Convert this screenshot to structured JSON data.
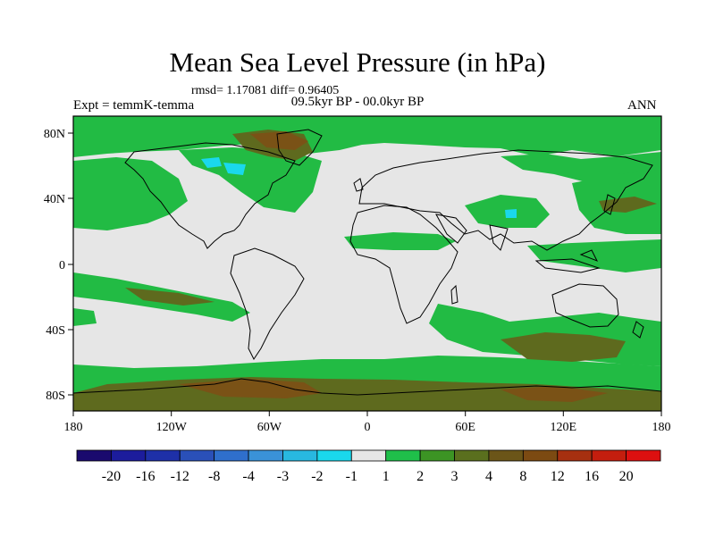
{
  "title": "Mean Sea Level Pressure (in hPa)",
  "stats": "rmsd= 1.17081 diff= 0.96405",
  "experiment": "Expt = temmK-temma",
  "period": "09.5kyr BP - 00.0kyr BP",
  "season": "ANN",
  "lat_labels": [
    "80N",
    "40N",
    "0",
    "40S",
    "80S"
  ],
  "lon_labels": [
    "180",
    "120W",
    "60W",
    "0",
    "60E",
    "120E",
    "180"
  ],
  "colorbar": {
    "labels": [
      "-20",
      "-16",
      "-12",
      "-8",
      "-4",
      "-3",
      "-2",
      "-1",
      "1",
      "2",
      "3",
      "4",
      "8",
      "12",
      "16",
      "20"
    ],
    "colors": [
      "#1a0a6e",
      "#1c1c9c",
      "#1e30a8",
      "#2a50b8",
      "#2f6fcc",
      "#3a92d8",
      "#28b8e0",
      "#1ad8ec",
      "#e6e6e6",
      "#1fbf4a",
      "#3c9424",
      "#5a6f1e",
      "#6b5518",
      "#7c4a12",
      "#a63010",
      "#c41e0e",
      "#dd1010"
    ]
  },
  "colors": {
    "land_outline": "#000000",
    "neutral": "#e6e6e6",
    "green": "#22bb44",
    "olive": "#5e6a1e",
    "brown": "#7a5216",
    "cyan": "#1ad8ec"
  }
}
